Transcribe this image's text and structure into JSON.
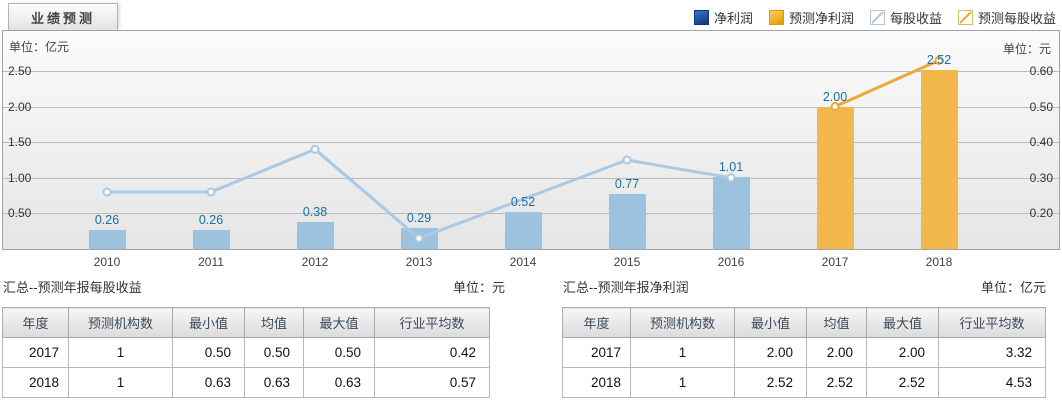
{
  "tab": {
    "label": "业绩预测"
  },
  "legend": [
    {
      "label": "净利润",
      "swatch": "bar",
      "color_top": "#3f74c8",
      "color_bottom": "#0d3581"
    },
    {
      "label": "预测净利润",
      "swatch": "bar",
      "color_top": "#ffd05a",
      "color_bottom": "#dd9b03"
    },
    {
      "label": "每股收益",
      "swatch": "line",
      "line_color": "#a9c9e5",
      "border": "#b9c2cb"
    },
    {
      "label": "预测每股收益",
      "swatch": "line",
      "line_color": "#f0a73a",
      "border": "#cfc06d"
    }
  ],
  "chart_data": {
    "type": "bar+line (dual axis)",
    "categories": [
      "2010",
      "2011",
      "2012",
      "2013",
      "2014",
      "2015",
      "2016",
      "2017",
      "2018"
    ],
    "left_axis": {
      "unit": "单位：亿元",
      "ticks": [
        "2.50",
        "2.00",
        "1.50",
        "1.00",
        "0.50"
      ],
      "range": [
        0,
        3.0
      ],
      "grid": true
    },
    "right_axis": {
      "unit": "单位：元",
      "ticks": [
        "0.60",
        "0.50",
        "0.40",
        "0.30",
        "0.20"
      ],
      "range": [
        0.1,
        0.7
      ],
      "grid": false
    },
    "series": [
      {
        "name": "净利润",
        "type": "bar",
        "axis": "left",
        "color": "#9cc2de",
        "values": [
          0.26,
          0.26,
          0.38,
          0.29,
          0.52,
          0.77,
          1.01,
          null,
          null
        ]
      },
      {
        "name": "预测净利润",
        "type": "bar",
        "axis": "left",
        "color": "#f2b84b",
        "values": [
          null,
          null,
          null,
          null,
          null,
          null,
          null,
          2.0,
          2.52
        ]
      },
      {
        "name": "每股收益",
        "type": "line",
        "axis": "right",
        "color": "#a9c9e5",
        "values": [
          0.26,
          0.26,
          0.38,
          0.13,
          null,
          0.35,
          0.3,
          null,
          null
        ]
      },
      {
        "name": "预测每股收益",
        "type": "line",
        "axis": "right",
        "color": "#f0a73a",
        "values": [
          null,
          null,
          null,
          null,
          null,
          null,
          null,
          0.5,
          0.63
        ]
      }
    ],
    "bar_labels": [
      "0.26",
      "0.26",
      "0.38",
      "0.29",
      "0.52",
      "0.77",
      "1.01",
      "2.00",
      "2.52"
    ],
    "bar_label_color": "#17739c",
    "legend_position": "top-right"
  },
  "tables": [
    {
      "title": "汇总--预测年报每股收益",
      "unit": "单位：元",
      "headers": [
        "年度",
        "预测机构数",
        "最小值",
        "均值",
        "最大值",
        "行业平均数"
      ],
      "rows": [
        [
          "2017",
          "1",
          "0.50",
          "0.50",
          "0.50",
          "0.42"
        ],
        [
          "2018",
          "1",
          "0.63",
          "0.63",
          "0.63",
          "0.57"
        ]
      ]
    },
    {
      "title": "汇总--预测年报净利润",
      "unit": "单位：亿元",
      "headers": [
        "年度",
        "预测机构数",
        "最小值",
        "均值",
        "最大值",
        "行业平均数"
      ],
      "rows": [
        [
          "2017",
          "1",
          "2.00",
          "2.00",
          "2.00",
          "3.32"
        ],
        [
          "2018",
          "1",
          "2.52",
          "2.52",
          "2.52",
          "4.53"
        ]
      ]
    }
  ]
}
